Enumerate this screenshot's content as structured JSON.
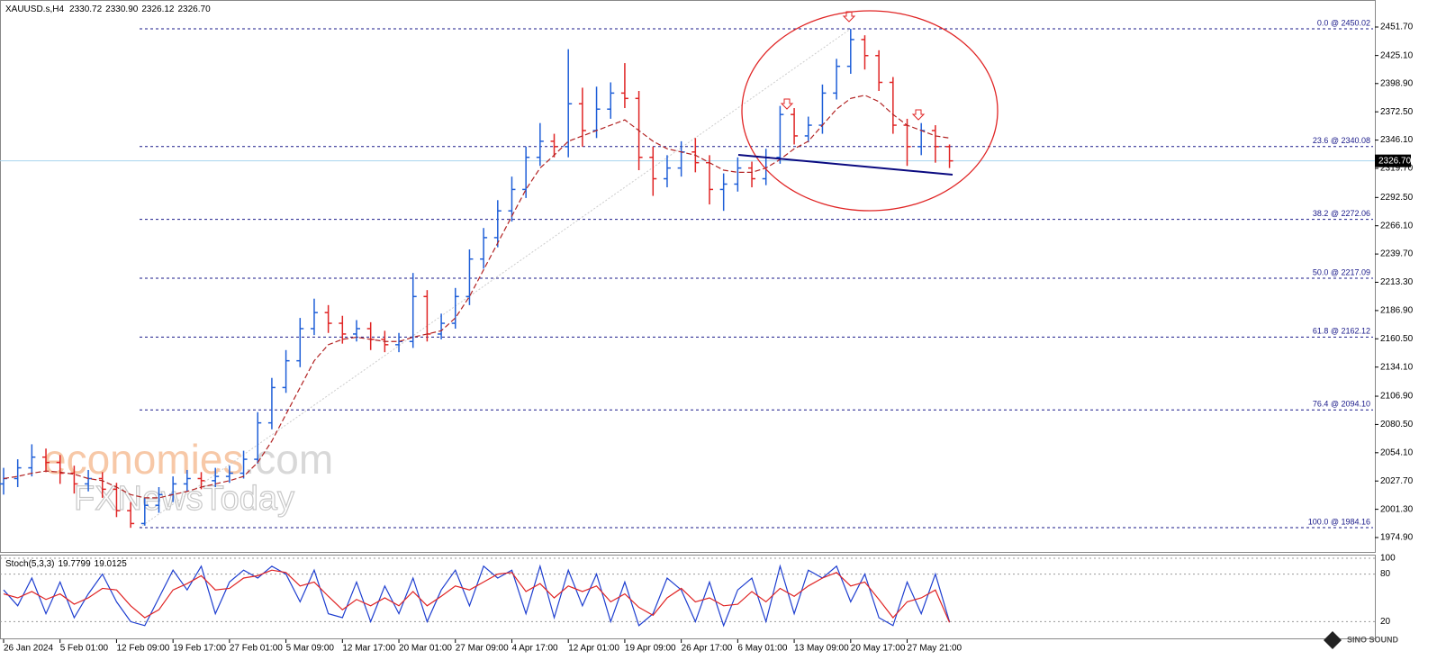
{
  "chart_data": {
    "type": "ohlc",
    "symbol": "XAUUSD.s,H4",
    "quote": [
      2330.72,
      {
        "value": 2330.9,
        "label": "2330.90"
      },
      2326.12,
      {
        "value": 2326.7,
        "label": "2326.70"
      }
    ],
    "categories": [
      "26 Jan 2024",
      null,
      null,
      null,
      "5 Feb 01:00",
      null,
      null,
      null,
      "12 Feb 09:00",
      null,
      null,
      null,
      "19 Feb 17:00",
      null,
      null,
      null,
      "27 Feb 01:00",
      null,
      null,
      null,
      "5 Mar 09:00",
      null,
      null,
      null,
      "12 Mar 17:00",
      null,
      null,
      null,
      "20 Mar 01:00",
      null,
      null,
      null,
      "27 Mar 09:00",
      null,
      null,
      null,
      "4 Apr 17:00",
      null,
      null,
      null,
      "12 Apr 01:00",
      null,
      null,
      null,
      "19 Apr 09:00",
      null,
      null,
      null,
      "26 Apr 17:00",
      null,
      null,
      null,
      "6 May 01:00",
      null,
      null,
      null,
      "13 May 09:00",
      null,
      null,
      null,
      "20 May 17:00",
      null,
      null,
      null,
      "27 May 21:00",
      null,
      null,
      null
    ],
    "open": [
      2025,
      2030,
      2040,
      2050,
      2045,
      2035,
      2025,
      2030,
      2020,
      2000,
      1988,
      2005,
      2015,
      2025,
      2030,
      2028,
      2032,
      2035,
      2048,
      2082,
      2115,
      2140,
      2170,
      2185,
      2175,
      2165,
      2170,
      2160,
      2155,
      2158,
      2200,
      2165,
      2175,
      2200,
      2235,
      2255,
      2280,
      2300,
      2330,
      2345,
      2340,
      2380,
      2355,
      2375,
      2390,
      2385,
      2330,
      2310,
      2320,
      2335,
      2325,
      2300,
      2305,
      2320,
      2310,
      2330,
      2370,
      2350,
      2360,
      2390,
      2415,
      2440,
      2425,
      2400,
      2360,
      2340,
      2355,
      2340
    ],
    "high": [
      2040,
      2048,
      2062,
      2058,
      2052,
      2042,
      2038,
      2036,
      2026,
      2008,
      2012,
      2022,
      2032,
      2038,
      2036,
      2040,
      2042,
      2056,
      2092,
      2124,
      2150,
      2180,
      2198,
      2192,
      2182,
      2178,
      2176,
      2168,
      2166,
      2222,
      2206,
      2184,
      2208,
      2244,
      2264,
      2290,
      2312,
      2340,
      2362,
      2352,
      2431,
      2395,
      2396,
      2400,
      2418,
      2392,
      2340,
      2332,
      2345,
      2348,
      2332,
      2315,
      2330,
      2326,
      2338,
      2378,
      2376,
      2368,
      2398,
      2422,
      2450,
      2444,
      2430,
      2405,
      2366,
      2362,
      2360,
      2342
    ],
    "low": [
      2015,
      2022,
      2032,
      2036,
      2025,
      2016,
      2018,
      2012,
      1994,
      1984,
      1986,
      1998,
      2008,
      2018,
      2020,
      2022,
      2026,
      2030,
      2044,
      2076,
      2110,
      2134,
      2164,
      2166,
      2156,
      2158,
      2150,
      2148,
      2148,
      2152,
      2158,
      2160,
      2170,
      2192,
      2226,
      2246,
      2270,
      2292,
      2322,
      2330,
      2330,
      2340,
      2348,
      2366,
      2376,
      2318,
      2294,
      2302,
      2312,
      2316,
      2286,
      2280,
      2298,
      2302,
      2304,
      2324,
      2342,
      2344,
      2352,
      2384,
      2408,
      2412,
      2392,
      2352,
      2322,
      2332,
      2325,
      2320
    ],
    "close": [
      2030,
      2040,
      2050,
      2045,
      2035,
      2025,
      2030,
      2020,
      2000,
      1988,
      2005,
      2015,
      2025,
      2030,
      2028,
      2032,
      2035,
      2048,
      2082,
      2115,
      2140,
      2170,
      2185,
      2175,
      2165,
      2170,
      2160,
      2155,
      2158,
      2200,
      2165,
      2175,
      2200,
      2235,
      2255,
      2280,
      2300,
      2330,
      2345,
      2340,
      2380,
      2355,
      2375,
      2390,
      2385,
      2330,
      2310,
      2320,
      2335,
      2325,
      2300,
      2305,
      2320,
      2310,
      2330,
      2370,
      2350,
      2360,
      2390,
      2415,
      2440,
      2425,
      2400,
      2360,
      2340,
      2355,
      2340,
      2326.7
    ],
    "up_color": "#1f5fd8",
    "down_color": "#e02424",
    "moving_average": {
      "color": "#b22222",
      "values": [
        2030,
        2032,
        2035,
        2037,
        2036,
        2034,
        2030,
        2028,
        2022,
        2015,
        2012,
        2012,
        2015,
        2018,
        2022,
        2025,
        2028,
        2032,
        2045,
        2065,
        2090,
        2115,
        2140,
        2155,
        2160,
        2162,
        2160,
        2158,
        2158,
        2162,
        2165,
        2168,
        2180,
        2200,
        2225,
        2250,
        2275,
        2300,
        2320,
        2332,
        2345,
        2350,
        2355,
        2360,
        2365,
        2355,
        2345,
        2338,
        2335,
        2332,
        2325,
        2318,
        2316,
        2316,
        2320,
        2328,
        2338,
        2345,
        2360,
        2375,
        2385,
        2388,
        2382,
        2370,
        2360,
        2355,
        2350,
        2348
      ]
    },
    "ylim": [
      1962.29,
      2476.93
    ],
    "yticks": [
      {
        "value": 2451.7,
        "label": "2451.70"
      },
      {
        "value": 2425.1,
        "label": "2425.10"
      },
      {
        "value": 2398.9,
        "label": "2398.90"
      },
      {
        "value": 2372.5,
        "label": "2372.50"
      },
      {
        "value": 2346.1,
        "label": "2346.10"
      },
      {
        "value": 2319.7,
        "label": "2319.70"
      },
      {
        "value": 2292.5,
        "label": "2292.50"
      },
      {
        "value": 2266.1,
        "label": "2266.10"
      },
      {
        "value": 2239.7,
        "label": "2239.70"
      },
      {
        "value": 2213.3,
        "label": "2213.30"
      },
      {
        "value": 2186.9,
        "label": "2186.90"
      },
      {
        "value": 2160.5,
        "label": "2160.50"
      },
      {
        "value": 2134.1,
        "label": "2134.10"
      },
      {
        "value": 2106.9,
        "label": "2106.90"
      },
      {
        "value": 2080.5,
        "label": "2080.50"
      },
      {
        "value": 2054.1,
        "label": "2054.10"
      },
      {
        "value": 2027.7,
        "label": "2027.70"
      },
      {
        "value": 2001.3,
        "label": "2001.30"
      },
      {
        "value": 1974.9,
        "label": "1974.90"
      }
    ],
    "current_price": {
      "value": 2326.7,
      "label": "2326.70"
    },
    "fib_levels": [
      {
        "value": 2450.02,
        "label": "0.0 @ 2450.02"
      },
      {
        "value": 2340.08,
        "label": "23.6 @ 2340.08"
      },
      {
        "value": 2272.06,
        "label": "38.2 @ 2272.06"
      },
      {
        "value": 2217.09,
        "label": "50.0 @ 2217.09"
      },
      {
        "value": 2162.12,
        "label": "61.8 @ 2162.12"
      },
      {
        "value": 2094.1,
        "label": "76.4 @ 2094.10"
      },
      {
        "value": 1984.16,
        "label": "100.0 @ 1984.16"
      }
    ],
    "indicator": {
      "type": "line",
      "name": "Stoch(5,3,3)",
      "readout": [
        19.7799,
        19.0125
      ],
      "ylim": [
        0,
        100
      ],
      "yticks": [
        100,
        80,
        20
      ],
      "series": [
        {
          "color": "#1f3fd0",
          "values": [
            60,
            40,
            75,
            30,
            70,
            25,
            55,
            80,
            45,
            20,
            15,
            50,
            85,
            60,
            90,
            30,
            70,
            85,
            75,
            90,
            80,
            45,
            85,
            30,
            25,
            70,
            20,
            65,
            30,
            75,
            20,
            60,
            85,
            40,
            90,
            75,
            85,
            30,
            90,
            25,
            85,
            40,
            80,
            20,
            70,
            15,
            30,
            75,
            60,
            20,
            70,
            15,
            60,
            75,
            20,
            90,
            30,
            85,
            75,
            90,
            45,
            80,
            25,
            15,
            70,
            30,
            80,
            19.7799
          ]
        },
        {
          "color": "#e02424",
          "values": [
            55,
            50,
            58,
            48,
            55,
            42,
            50,
            62,
            60,
            40,
            25,
            35,
            60,
            68,
            78,
            60,
            62,
            75,
            78,
            85,
            82,
            65,
            70,
            52,
            35,
            48,
            40,
            50,
            40,
            58,
            40,
            52,
            65,
            60,
            70,
            80,
            82,
            58,
            68,
            50,
            65,
            58,
            65,
            45,
            55,
            38,
            28,
            50,
            62,
            45,
            50,
            40,
            42,
            58,
            45,
            62,
            52,
            65,
            75,
            82,
            65,
            70,
            48,
            25,
            45,
            50,
            60,
            19.0125
          ]
        }
      ]
    },
    "watermark": {
      "brand": "economies",
      "suffix": ".com",
      "second": "FXNewsToday",
      "logo": "SINO SOUND"
    }
  }
}
